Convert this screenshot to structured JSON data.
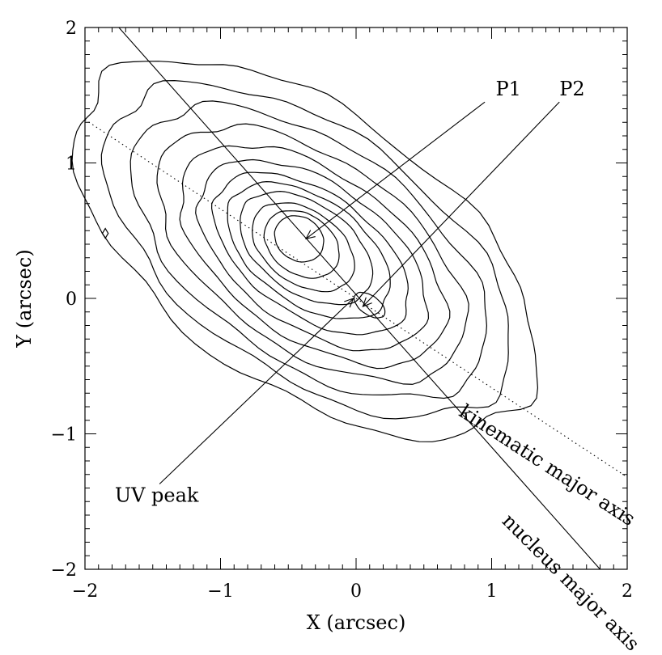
{
  "chart_data": {
    "type": "contour",
    "xlabel": "X (arcsec)",
    "ylabel": "Y (arcsec)",
    "xlim": [
      -2,
      2
    ],
    "ylim": [
      -2,
      2
    ],
    "x_ticks": [
      -2,
      -1,
      0,
      1,
      2
    ],
    "y_ticks": [
      -2,
      -1,
      0,
      1,
      2
    ],
    "x_tick_labels": [
      "−2",
      "−1",
      "0",
      "1",
      "2"
    ],
    "y_tick_labels": [
      "−2",
      "−1",
      "0",
      "1",
      "2"
    ],
    "grid": false,
    "contours": {
      "center": [
        -0.42,
        0.4
      ],
      "orientation_deg": -35,
      "levels": [
        {
          "a": 1.95,
          "b": 1.02,
          "dx": 0.05,
          "dy": -0.03
        },
        {
          "a": 1.72,
          "b": 0.9,
          "dx": 0.07,
          "dy": -0.05
        },
        {
          "a": 1.5,
          "b": 0.8,
          "dx": 0.08,
          "dy": -0.06
        },
        {
          "a": 1.3,
          "b": 0.7,
          "dx": 0.09,
          "dy": -0.07
        },
        {
          "a": 1.12,
          "b": 0.61,
          "dx": 0.1,
          "dy": -0.08
        },
        {
          "a": 0.96,
          "b": 0.53,
          "dx": 0.1,
          "dy": -0.08
        },
        {
          "a": 0.82,
          "b": 0.45,
          "dx": 0.09,
          "dy": -0.07
        },
        {
          "a": 0.68,
          "b": 0.39,
          "dx": 0.07,
          "dy": -0.05
        },
        {
          "a": 0.55,
          "b": 0.33,
          "dx": 0.05,
          "dy": -0.03
        },
        {
          "a": 0.42,
          "b": 0.27,
          "dx": 0.03,
          "dy": -0.02
        },
        {
          "a": 0.3,
          "b": 0.22,
          "dx": 0.02,
          "dy": 0.0
        },
        {
          "a": 0.19,
          "b": 0.16,
          "dx": 0.0,
          "dy": 0.04
        }
      ],
      "secondary_peak": {
        "center": [
          0.1,
          -0.05
        ],
        "a": 0.13,
        "b": 0.07,
        "orientation_deg": -35
      }
    },
    "lines": [
      {
        "name": "nucleus major axis",
        "style": "solid",
        "x": [
          -1.75,
          1.8
        ],
        "y": [
          2.0,
          -2.0
        ]
      },
      {
        "name": "kinematic major axis",
        "style": "dotted",
        "x": [
          -2.0,
          2.0
        ],
        "y": [
          1.32,
          -1.32
        ]
      },
      {
        "name": "P1 pointer",
        "style": "solid",
        "x": [
          0.95,
          -0.37
        ],
        "y": [
          1.45,
          0.44
        ],
        "arrow": true
      },
      {
        "name": "P2 pointer",
        "style": "solid",
        "x": [
          1.5,
          0.05
        ],
        "y": [
          1.45,
          -0.06
        ],
        "arrow": true
      },
      {
        "name": "UV peak pointer",
        "style": "solid",
        "x": [
          -1.45,
          -0.02
        ],
        "y": [
          -1.37,
          0.0
        ],
        "arrow": true
      }
    ],
    "annotations": [
      {
        "text": "P1",
        "x": 1.03,
        "y": 1.5
      },
      {
        "text": "P2",
        "x": 1.5,
        "y": 1.5
      },
      {
        "text": "UV peak",
        "x": -1.78,
        "y": -1.5
      },
      {
        "text": "kinematic major axis",
        "x": 0.75,
        "y": -0.86,
        "angle_deg": 33
      },
      {
        "text": "nucleus major axis",
        "x": 1.07,
        "y": -1.65,
        "angle_deg": 45
      }
    ],
    "minor_features": [
      {
        "type": "diamond",
        "x": -1.85,
        "y": 0.48
      }
    ]
  }
}
